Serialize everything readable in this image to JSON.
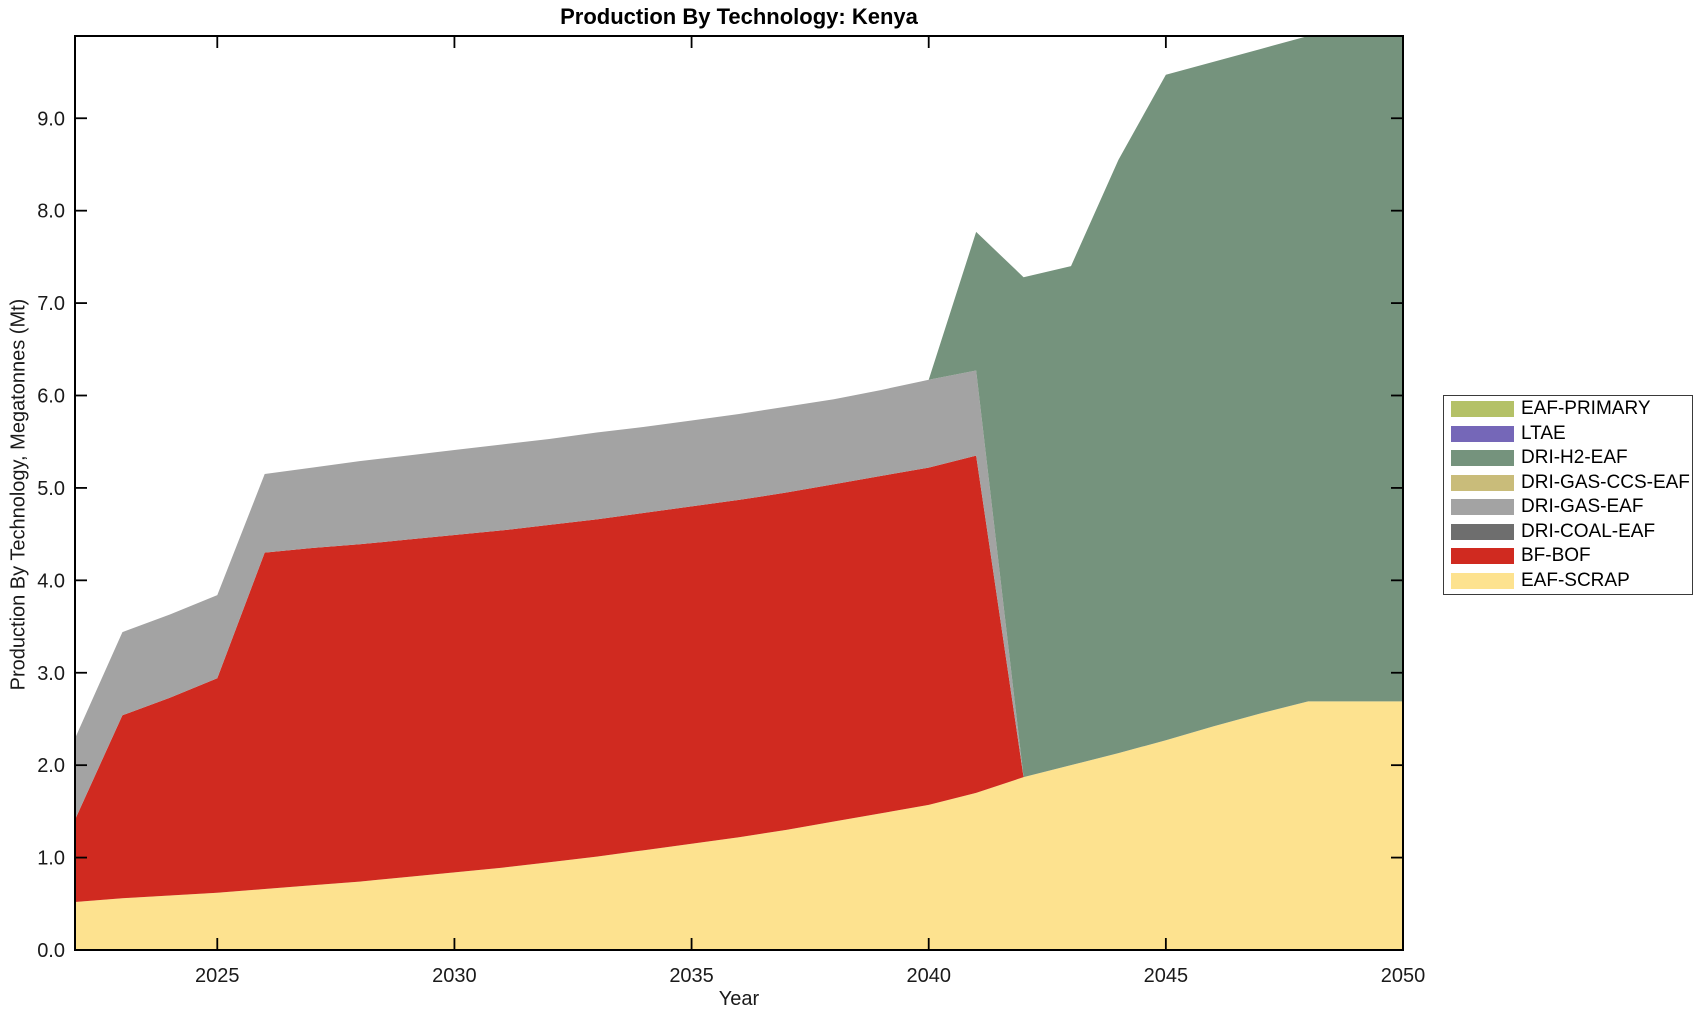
{
  "chart_data": {
    "type": "area",
    "stacked": true,
    "title": "Production By Technology: Kenya",
    "xlabel": "Year",
    "ylabel": "Production By Technology, Megatonnes (Mt)",
    "x": [
      2022,
      2023,
      2024,
      2025,
      2026,
      2027,
      2028,
      2029,
      2030,
      2031,
      2032,
      2033,
      2034,
      2035,
      2036,
      2037,
      2038,
      2039,
      2040,
      2041,
      2042,
      2043,
      2044,
      2045,
      2046,
      2047,
      2048,
      2049,
      2050
    ],
    "series": [
      {
        "name": "EAF-SCRAP",
        "color": "#fde28f",
        "values": [
          0.52,
          0.56,
          0.59,
          0.62,
          0.66,
          0.7,
          0.74,
          0.79,
          0.84,
          0.89,
          0.95,
          1.01,
          1.08,
          1.15,
          1.22,
          1.3,
          1.39,
          1.48,
          1.57,
          1.7,
          1.87,
          2.0,
          2.13,
          2.27,
          2.42,
          2.56,
          2.69,
          2.69,
          2.69
        ]
      },
      {
        "name": "BF-BOF",
        "color": "#d02a20",
        "values": [
          0.89,
          1.98,
          2.14,
          2.32,
          3.64,
          3.65,
          3.65,
          3.65,
          3.65,
          3.65,
          3.65,
          3.65,
          3.65,
          3.65,
          3.65,
          3.65,
          3.65,
          3.65,
          3.65,
          3.65,
          0,
          0,
          0,
          0,
          0,
          0,
          0,
          0,
          0
        ]
      },
      {
        "name": "DRI-COAL-EAF",
        "color": "#6e6e6e",
        "values": [
          0,
          0,
          0,
          0,
          0,
          0,
          0,
          0,
          0,
          0,
          0,
          0,
          0,
          0,
          0,
          0,
          0,
          0,
          0,
          0,
          0,
          0,
          0,
          0,
          0,
          0,
          0,
          0,
          0
        ]
      },
      {
        "name": "DRI-GAS-EAF",
        "color": "#a3a3a3",
        "values": [
          0.88,
          0.9,
          0.9,
          0.9,
          0.85,
          0.87,
          0.9,
          0.91,
          0.92,
          0.93,
          0.93,
          0.94,
          0.93,
          0.93,
          0.93,
          0.93,
          0.92,
          0.93,
          0.95,
          0.92,
          0,
          0,
          0,
          0,
          0,
          0,
          0,
          0,
          0
        ]
      },
      {
        "name": "DRI-GAS-CCS-EAF",
        "color": "#c9bc7a",
        "values": [
          0,
          0,
          0,
          0,
          0,
          0,
          0,
          0,
          0,
          0,
          0,
          0,
          0,
          0,
          0,
          0,
          0,
          0,
          0,
          0,
          0,
          0,
          0,
          0,
          0,
          0,
          0,
          0,
          0
        ]
      },
      {
        "name": "DRI-H2-EAF",
        "color": "#75937d",
        "values": [
          0,
          0,
          0,
          0,
          0,
          0,
          0,
          0,
          0,
          0,
          0,
          0,
          0,
          0,
          0,
          0,
          0,
          0,
          0.0,
          1.5,
          5.41,
          5.4,
          6.42,
          7.2,
          7.19,
          7.19,
          7.2,
          7.2,
          7.2
        ]
      },
      {
        "name": "LTAE",
        "color": "#7567b8",
        "values": [
          0,
          0,
          0,
          0,
          0,
          0,
          0,
          0,
          0,
          0,
          0,
          0,
          0,
          0,
          0,
          0,
          0,
          0,
          0,
          0,
          0,
          0,
          0,
          0,
          0,
          0,
          0,
          0,
          0
        ]
      },
      {
        "name": "EAF-PRIMARY",
        "color": "#b4c167",
        "values": [
          0,
          0,
          0,
          0,
          0,
          0,
          0,
          0,
          0,
          0,
          0,
          0,
          0,
          0,
          0,
          0,
          0,
          0,
          0,
          0,
          0,
          0,
          0,
          0,
          0,
          0,
          0,
          0,
          0
        ]
      }
    ],
    "xlim": [
      2022,
      2050
    ],
    "ylim": [
      0,
      9.89
    ],
    "x_tick_labels": [
      "2025",
      "2030",
      "2035",
      "2040",
      "2045",
      "2050"
    ],
    "y_tick_labels": [
      "0.0",
      "1.0",
      "2.0",
      "3.0",
      "4.0",
      "5.0",
      "6.0",
      "7.0",
      "8.0",
      "9.0"
    ],
    "grid": false,
    "legend_position": "right-outside",
    "legend": [
      "EAF-PRIMARY",
      "LTAE",
      "DRI-H2-EAF",
      "DRI-GAS-CCS-EAF",
      "DRI-GAS-EAF",
      "DRI-COAL-EAF",
      "BF-BOF",
      "EAF-SCRAP"
    ]
  }
}
